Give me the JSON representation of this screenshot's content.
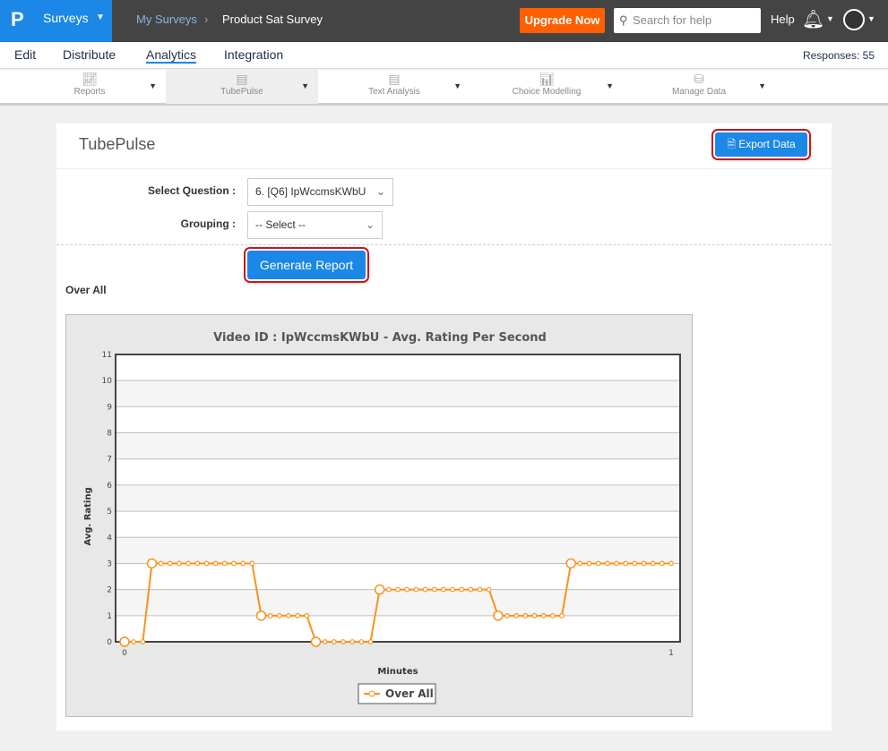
{
  "topbar": {
    "logo": "P",
    "app": "Surveys",
    "crumbs": [
      "My Surveys",
      "Product Sat Survey"
    ],
    "upgrade": "Upgrade Now",
    "search_placeholder": "Search for help",
    "help": "Help"
  },
  "nav": {
    "items": [
      "Edit",
      "Distribute",
      "Analytics",
      "Integration"
    ],
    "active": "Analytics",
    "responses": "Responses: 55"
  },
  "toolbar": [
    {
      "label": "Reports",
      "icon": "line-chart-icon"
    },
    {
      "label": "TubePulse",
      "icon": "document-icon"
    },
    {
      "label": "Text Analysis",
      "icon": "document-icon"
    },
    {
      "label": "Choice Modelling",
      "icon": "bar-chart-icon"
    },
    {
      "label": "Manage Data",
      "icon": "database-icon"
    }
  ],
  "page": {
    "title": "TubePulse",
    "export": "Export Data",
    "select_question_label": "Select Question :",
    "select_question_value": "6. [Q6] IpWccmsKWbU",
    "grouping_label": "Grouping :",
    "grouping_value": "-- Select --",
    "generate": "Generate Report",
    "section": "Over All"
  },
  "colors": {
    "accent": "#1b87e6",
    "upgrade": "#ff5f00",
    "series": "#f7931e"
  },
  "chart_data": {
    "type": "line",
    "title": "Video ID : IpWccmsKWbU - Avg. Rating Per Second",
    "xlabel": "Minutes",
    "ylabel": "Avg. Rating",
    "xlim": [
      0,
      1
    ],
    "ylim": [
      0,
      11
    ],
    "xticks": [
      "0",
      "1"
    ],
    "yticks": [
      "0",
      "1",
      "2",
      "3",
      "4",
      "5",
      "6",
      "7",
      "8",
      "9",
      "10",
      "11"
    ],
    "grid": true,
    "legend": "bottom",
    "series": [
      {
        "name": "Over All",
        "values": [
          0,
          0,
          0,
          3,
          3,
          3,
          3,
          3,
          3,
          3,
          3,
          3,
          3,
          3,
          3,
          1,
          1,
          1,
          1,
          1,
          1,
          0,
          0,
          0,
          0,
          0,
          0,
          0,
          2,
          2,
          2,
          2,
          2,
          2,
          2,
          2,
          2,
          2,
          2,
          2,
          2,
          1,
          1,
          1,
          1,
          1,
          1,
          1,
          1,
          3,
          3,
          3,
          3,
          3,
          3,
          3,
          3,
          3,
          3,
          3,
          3
        ]
      }
    ]
  }
}
